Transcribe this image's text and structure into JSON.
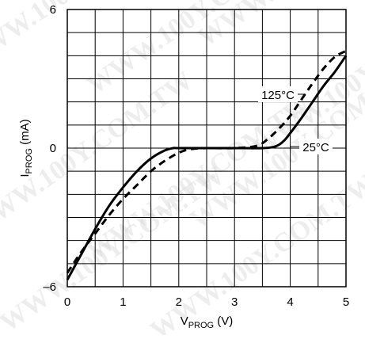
{
  "watermark": "WWW.100Y.COM.TW",
  "chart_data": {
    "type": "line",
    "title": "",
    "xlabel": {
      "main": "V",
      "sub": "PROG",
      "unit": " (V)"
    },
    "ylabel": {
      "main": "I",
      "sub": "PROG",
      "unit": " (mA)"
    },
    "xlim": [
      0,
      5
    ],
    "ylim": [
      -6,
      6
    ],
    "x_ticks": [
      0,
      1,
      2,
      3,
      4,
      5
    ],
    "y_ticks": [
      -6,
      0,
      6
    ],
    "x_tick_labels": [
      "0",
      "1",
      "2",
      "3",
      "4",
      "5"
    ],
    "y_tick_labels": [
      "–6",
      "0",
      "6"
    ],
    "grid": true,
    "grid_x_step": 0.5,
    "grid_y_step": 1,
    "series": [
      {
        "name": "25°C",
        "style": "solid",
        "color": "#000000",
        "x": [
          0,
          0.25,
          0.5,
          0.75,
          1.0,
          1.25,
          1.5,
          1.75,
          1.9,
          2.0,
          2.5,
          3.0,
          3.5,
          3.7,
          3.8,
          3.9,
          4.0,
          4.2,
          4.4,
          4.6,
          4.8,
          5.0
        ],
        "y": [
          -5.7,
          -4.6,
          -3.5,
          -2.5,
          -1.7,
          -1.0,
          -0.45,
          -0.1,
          0.0,
          0.0,
          0.0,
          0.0,
          0.0,
          0.05,
          0.15,
          0.35,
          0.65,
          1.3,
          2.0,
          2.7,
          3.3,
          4.0
        ]
      },
      {
        "name": "125°C",
        "style": "dashed",
        "color": "#000000",
        "x": [
          0,
          0.25,
          0.5,
          0.75,
          1.0,
          1.25,
          1.5,
          1.75,
          2.0,
          2.2,
          2.5,
          3.0,
          3.4,
          3.6,
          3.8,
          4.0,
          4.2,
          4.4,
          4.6,
          4.8,
          4.95,
          5.0
        ],
        "y": [
          -5.4,
          -4.5,
          -3.7,
          -2.9,
          -2.2,
          -1.6,
          -1.0,
          -0.55,
          -0.2,
          -0.05,
          0.0,
          0.0,
          0.1,
          0.4,
          0.85,
          1.4,
          2.1,
          2.8,
          3.45,
          3.95,
          4.15,
          4.2
        ]
      }
    ],
    "annotations": [
      {
        "text": "125°C",
        "series": "125°C"
      },
      {
        "text": "25°C",
        "series": "25°C"
      }
    ]
  }
}
